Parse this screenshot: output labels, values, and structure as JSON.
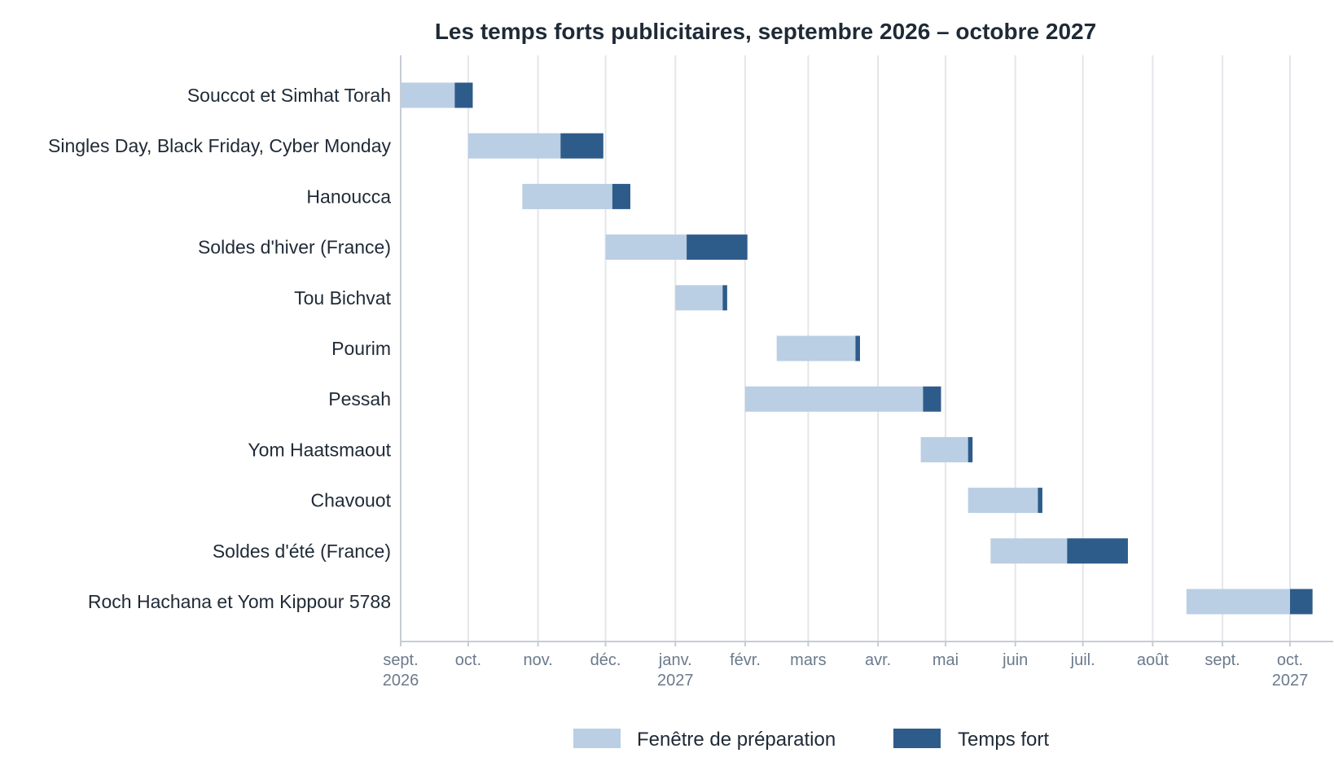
{
  "chart_data": {
    "type": "gantt",
    "title": "Les temps forts publicitaires, septembre 2026 – octobre 2027",
    "xlabel": "",
    "ylabel": "",
    "x_range": [
      "2026-09-01",
      "2027-10-17"
    ],
    "x_ticks": [
      {
        "date": "2026-09-01",
        "label": "sept.",
        "sub": "2026"
      },
      {
        "date": "2026-10-01",
        "label": "oct.",
        "sub": ""
      },
      {
        "date": "2026-11-01",
        "label": "nov.",
        "sub": ""
      },
      {
        "date": "2026-12-01",
        "label": "déc.",
        "sub": ""
      },
      {
        "date": "2027-01-01",
        "label": "janv.",
        "sub": "2027"
      },
      {
        "date": "2027-02-01",
        "label": "févr.",
        "sub": ""
      },
      {
        "date": "2027-03-01",
        "label": "mars",
        "sub": ""
      },
      {
        "date": "2027-04-01",
        "label": "avr.",
        "sub": ""
      },
      {
        "date": "2027-05-01",
        "label": "mai",
        "sub": ""
      },
      {
        "date": "2027-06-01",
        "label": "juin",
        "sub": ""
      },
      {
        "date": "2027-07-01",
        "label": "juil.",
        "sub": ""
      },
      {
        "date": "2027-08-01",
        "label": "août",
        "sub": ""
      },
      {
        "date": "2027-09-01",
        "label": "sept.",
        "sub": ""
      },
      {
        "date": "2027-10-01",
        "label": "oct.",
        "sub": "2027"
      }
    ],
    "grid": true,
    "legend_position": "bottom",
    "legend": [
      {
        "name": "Fenêtre de préparation",
        "color": "#bacee4"
      },
      {
        "name": "Temps fort",
        "color": "#2e5c8a"
      }
    ],
    "events": [
      {
        "name": "Souccot et Simhat Torah",
        "prep_start": "2026-09-01",
        "peak_start": "2026-09-25",
        "peak_end": "2026-10-03"
      },
      {
        "name": "Singles Day, Black Friday, Cyber Monday",
        "prep_start": "2026-10-01",
        "peak_start": "2026-11-11",
        "peak_end": "2026-11-30"
      },
      {
        "name": "Hanoucca",
        "prep_start": "2026-10-25",
        "peak_start": "2026-12-04",
        "peak_end": "2026-12-12"
      },
      {
        "name": "Soldes d'hiver (France)",
        "prep_start": "2026-12-01",
        "peak_start": "2027-01-06",
        "peak_end": "2027-02-02"
      },
      {
        "name": "Tou Bichvat",
        "prep_start": "2027-01-01",
        "peak_start": "2027-01-22",
        "peak_end": "2027-01-24"
      },
      {
        "name": "Pourim",
        "prep_start": "2027-02-15",
        "peak_start": "2027-03-22",
        "peak_end": "2027-03-24"
      },
      {
        "name": "Pessah",
        "prep_start": "2027-02-01",
        "peak_start": "2027-04-21",
        "peak_end": "2027-04-29"
      },
      {
        "name": "Yom Haatsmaout",
        "prep_start": "2027-04-20",
        "peak_start": "2027-05-11",
        "peak_end": "2027-05-13"
      },
      {
        "name": "Chavouot",
        "prep_start": "2027-05-11",
        "peak_start": "2027-06-11",
        "peak_end": "2027-06-13"
      },
      {
        "name": "Soldes d'été (France)",
        "prep_start": "2027-05-21",
        "peak_start": "2027-06-24",
        "peak_end": "2027-07-21"
      },
      {
        "name": "Roch Hachana et Yom Kippour 5788",
        "prep_start": "2027-08-16",
        "peak_start": "2027-10-01",
        "peak_end": "2027-10-11"
      }
    ],
    "colors": {
      "prep": "#bacee4",
      "peak": "#2e5c8a",
      "grid": "#e3e6ea",
      "axis": "#c6ccd6"
    }
  }
}
